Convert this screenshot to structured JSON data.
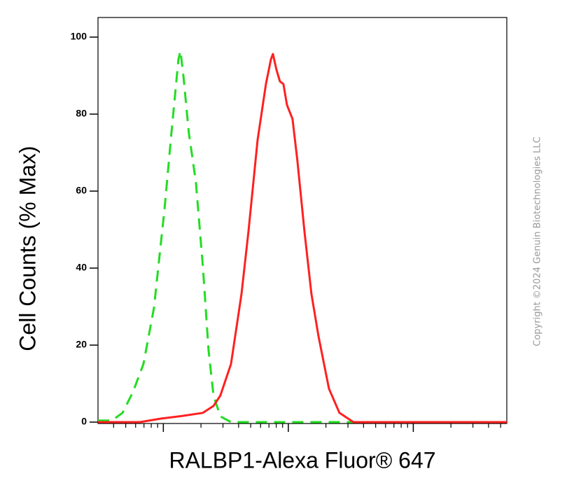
{
  "chart_data": {
    "type": "line",
    "y_label": "Cell Counts (% Max)",
    "x_label": "RALBP1-Alexa Fluor® 647",
    "copyright": "Copyright ©2024 Genuin Biotechnologies LLC",
    "xscale": "log",
    "xlim": [
      30,
      56000
    ],
    "xticks": [
      100,
      1000,
      10000
    ],
    "ylim": [
      0,
      100
    ],
    "yticks": [
      0,
      20,
      40,
      60,
      80,
      100
    ],
    "series": [
      {
        "color": "#22dd22",
        "dashed": true,
        "x": [
          30,
          38.8,
          47.1,
          57.1,
          69.3,
          84.1,
          102,
          116,
          132,
          137,
          145,
          160,
          182,
          207,
          230,
          252,
          286,
          348,
          56000
        ],
        "values": [
          0.4,
          0.4,
          2.4,
          7.8,
          15.1,
          29.6,
          55.1,
          75.1,
          94.2,
          96.4,
          89.6,
          75.1,
          62.4,
          40.5,
          18.7,
          6.9,
          1.5,
          0,
          0
        ]
      },
      {
        "color": "#ff2020",
        "dashed": false,
        "x": [
          30,
          65,
          95.7,
          141,
          207,
          252,
          286,
          348,
          422,
          480,
          568,
          662,
          725,
          753,
          804,
          857,
          914,
          975,
          1081,
          1183,
          1346,
          1531,
          1742,
          2113,
          2564,
          3319,
          56000
        ],
        "values": [
          0,
          0,
          0.9,
          1.6,
          2.4,
          4.2,
          6.9,
          15.1,
          33.3,
          49.6,
          73.3,
          87.8,
          94.2,
          95.6,
          91.5,
          88.5,
          87.8,
          82.4,
          78.7,
          67.8,
          49.6,
          33.3,
          22.4,
          8.7,
          2.4,
          0,
          0
        ]
      }
    ]
  }
}
